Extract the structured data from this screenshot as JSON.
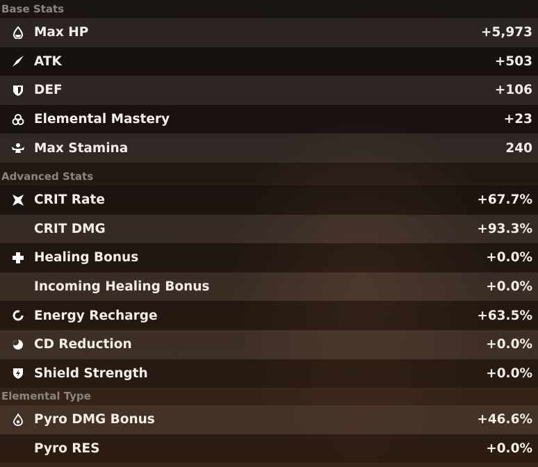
{
  "sections": [
    {
      "title": "Base Stats",
      "rows": [
        {
          "icon": "drop-icon",
          "label": "Max HP",
          "value": "+5,973"
        },
        {
          "icon": "sword-icon",
          "label": "ATK",
          "value": "+503"
        },
        {
          "icon": "shield-icon",
          "label": "DEF",
          "value": "+106"
        },
        {
          "icon": "triple-ring-icon",
          "label": "Elemental Mastery",
          "value": "+23"
        },
        {
          "icon": "muscle-icon",
          "label": "Max Stamina",
          "value": "240"
        }
      ]
    },
    {
      "title": "Advanced Stats",
      "rows": [
        {
          "icon": "crit-star-icon",
          "label": "CRIT Rate",
          "value": "+67.7%"
        },
        {
          "icon": "",
          "label": "CRIT DMG",
          "value": "+93.3%"
        },
        {
          "icon": "cross-icon",
          "label": "Healing Bonus",
          "value": "+0.0%"
        },
        {
          "icon": "",
          "label": "Incoming Healing Bonus",
          "value": "+0.0%"
        },
        {
          "icon": "recharge-ring-icon",
          "label": "Energy Recharge",
          "value": "+63.5%"
        },
        {
          "icon": "cd-moon-icon",
          "label": "CD Reduction",
          "value": "+0.0%"
        },
        {
          "icon": "shield-bolt-icon",
          "label": "Shield Strength",
          "value": "+0.0%"
        }
      ]
    },
    {
      "title": "Elemental Type",
      "rows": [
        {
          "icon": "pyro-icon",
          "label": "Pyro DMG Bonus",
          "value": "+46.6%"
        },
        {
          "icon": "",
          "label": "Pyro RES",
          "value": "+0.0%"
        }
      ]
    }
  ]
}
